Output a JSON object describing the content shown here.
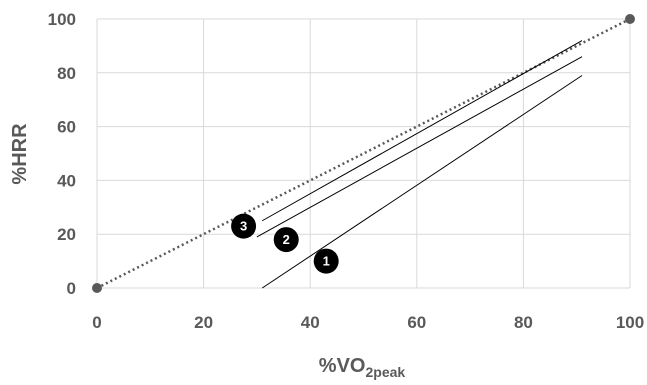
{
  "chart_data": {
    "type": "line",
    "xlabel": {
      "main": "%VO",
      "sub": "2peak"
    },
    "ylabel": "%HRR",
    "xlim": [
      0,
      100
    ],
    "ylim": [
      0,
      100
    ],
    "x_ticks": [
      "0",
      "20",
      "40",
      "60",
      "80",
      "100"
    ],
    "y_ticks": [
      "0",
      "20",
      "40",
      "60",
      "80",
      "100"
    ],
    "grid": true,
    "colors": {
      "grid": "#d9d9d9",
      "text": "#595959",
      "line": "#000000",
      "reference": "#595959"
    },
    "reference_line": {
      "style": "dotted",
      "x": [
        0,
        100
      ],
      "y": [
        0,
        100
      ]
    },
    "series": [
      {
        "label": "1",
        "x": [
          31,
          91
        ],
        "y": [
          0,
          79
        ],
        "marker": {
          "x": 43,
          "y": 10
        }
      },
      {
        "label": "2",
        "x": [
          30,
          91
        ],
        "y": [
          19,
          86
        ],
        "marker": {
          "x": 35.5,
          "y": 18
        }
      },
      {
        "label": "3",
        "x": [
          31,
          91
        ],
        "y": [
          25,
          92
        ],
        "marker": {
          "x": 27.5,
          "y": 23
        }
      }
    ]
  }
}
